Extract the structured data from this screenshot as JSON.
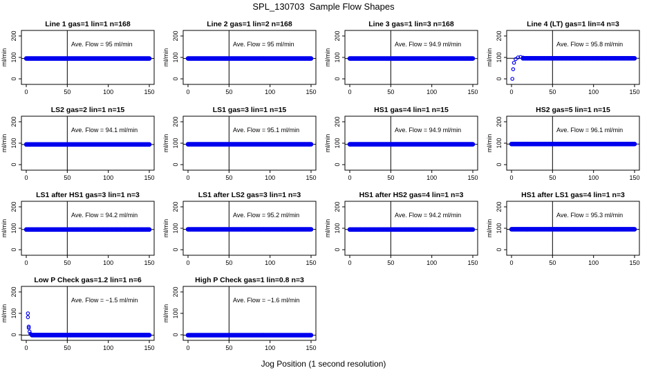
{
  "page_title": "SPL_130703  Sample Flow Shapes",
  "x_axis_label": "Jog Position (1 second resolution)",
  "colors": {
    "points": "#0000ee",
    "axes": "#000000"
  },
  "chart_data": [
    {
      "type": "scatter",
      "title": "Line 1 gas=1 lin=1 n=168",
      "ylabel": "ml/min",
      "xlim": [
        0,
        150
      ],
      "ylim": [
        0,
        200
      ],
      "xticks": [
        "0",
        "50",
        "100",
        "150"
      ],
      "yticks": [
        "0",
        "100",
        "200"
      ],
      "vline_x": 50,
      "hline_y": 95,
      "annotation": "Ave. Flow =  95  ml/min",
      "points": {
        "x_start": 0,
        "x_end": 150,
        "y": 95,
        "transient": []
      }
    },
    {
      "type": "scatter",
      "title": "Line 2 gas=1 lin=2 n=168",
      "ylabel": "ml/min",
      "xlim": [
        0,
        150
      ],
      "ylim": [
        0,
        200
      ],
      "xticks": [
        "0",
        "50",
        "100",
        "150"
      ],
      "yticks": [
        "0",
        "100",
        "200"
      ],
      "vline_x": 50,
      "hline_y": 95,
      "annotation": "Ave. Flow =  95  ml/min",
      "points": {
        "x_start": 0,
        "x_end": 150,
        "y": 95,
        "transient": []
      }
    },
    {
      "type": "scatter",
      "title": "Line 3 gas=1 lin=3 n=168",
      "ylabel": "ml/min",
      "xlim": [
        0,
        150
      ],
      "ylim": [
        0,
        200
      ],
      "xticks": [
        "0",
        "50",
        "100",
        "150"
      ],
      "yticks": [
        "0",
        "100",
        "200"
      ],
      "vline_x": 50,
      "hline_y": 94.9,
      "annotation": "Ave. Flow =  94.9  ml/min",
      "points": {
        "x_start": 0,
        "x_end": 150,
        "y": 94.9,
        "transient": []
      }
    },
    {
      "type": "scatter",
      "title": "Line 4 (LT) gas=1 lin=4 n=3",
      "ylabel": "ml/min",
      "xlim": [
        0,
        150
      ],
      "ylim": [
        0,
        200
      ],
      "xticks": [
        "0",
        "50",
        "100",
        "150"
      ],
      "yticks": [
        "0",
        "100",
        "200"
      ],
      "vline_x": 50,
      "hline_y": 95.8,
      "annotation": "Ave. Flow =  95.8  ml/min",
      "points": {
        "x_start": 14,
        "x_end": 150,
        "y": 95.8,
        "transient": [
          [
            1,
            0
          ],
          [
            2,
            45
          ],
          [
            3,
            75
          ],
          [
            5,
            92
          ],
          [
            8,
            100
          ],
          [
            11,
            102
          ],
          [
            14,
            99
          ]
        ]
      }
    },
    {
      "type": "scatter",
      "title": "LS2 gas=2 lin=1 n=15",
      "ylabel": "ml/min",
      "xlim": [
        0,
        150
      ],
      "ylim": [
        0,
        200
      ],
      "xticks": [
        "0",
        "50",
        "100",
        "150"
      ],
      "yticks": [
        "0",
        "100",
        "200"
      ],
      "vline_x": 50,
      "hline_y": 94.1,
      "annotation": "Ave. Flow =  94.1  ml/min",
      "points": {
        "x_start": 0,
        "x_end": 150,
        "y": 94.1,
        "transient": []
      }
    },
    {
      "type": "scatter",
      "title": "LS1 gas=3 lin=1 n=15",
      "ylabel": "ml/min",
      "xlim": [
        0,
        150
      ],
      "ylim": [
        0,
        200
      ],
      "xticks": [
        "0",
        "50",
        "100",
        "150"
      ],
      "yticks": [
        "0",
        "100",
        "200"
      ],
      "vline_x": 50,
      "hline_y": 95.1,
      "annotation": "Ave. Flow =  95.1  ml/min",
      "points": {
        "x_start": 0,
        "x_end": 150,
        "y": 95.1,
        "transient": []
      }
    },
    {
      "type": "scatter",
      "title": "HS1 gas=4 lin=1 n=15",
      "ylabel": "ml/min",
      "xlim": [
        0,
        150
      ],
      "ylim": [
        0,
        200
      ],
      "xticks": [
        "0",
        "50",
        "100",
        "150"
      ],
      "yticks": [
        "0",
        "100",
        "200"
      ],
      "vline_x": 50,
      "hline_y": 94.9,
      "annotation": "Ave. Flow =  94.9  ml/min",
      "points": {
        "x_start": 0,
        "x_end": 150,
        "y": 94.9,
        "transient": []
      }
    },
    {
      "type": "scatter",
      "title": "HS2 gas=5 lin=1 n=15",
      "ylabel": "ml/min",
      "xlim": [
        0,
        150
      ],
      "ylim": [
        0,
        200
      ],
      "xticks": [
        "0",
        "50",
        "100",
        "150"
      ],
      "yticks": [
        "0",
        "100",
        "200"
      ],
      "vline_x": 50,
      "hline_y": 96.1,
      "annotation": "Ave. Flow =  96.1  ml/min",
      "points": {
        "x_start": 0,
        "x_end": 150,
        "y": 96.1,
        "transient": []
      }
    },
    {
      "type": "scatter",
      "title": "LS1 after HS1 gas=3 lin=1 n=3",
      "ylabel": "ml/min",
      "xlim": [
        0,
        150
      ],
      "ylim": [
        0,
        200
      ],
      "xticks": [
        "0",
        "50",
        "100",
        "150"
      ],
      "yticks": [
        "0",
        "100",
        "200"
      ],
      "vline_x": 50,
      "hline_y": 94.2,
      "annotation": "Ave. Flow =  94.2  ml/min",
      "points": {
        "x_start": 0,
        "x_end": 150,
        "y": 94.2,
        "transient": []
      }
    },
    {
      "type": "scatter",
      "title": "LS1 after LS2 gas=3 lin=1 n=3",
      "ylabel": "ml/min",
      "xlim": [
        0,
        150
      ],
      "ylim": [
        0,
        200
      ],
      "xticks": [
        "0",
        "50",
        "100",
        "150"
      ],
      "yticks": [
        "0",
        "100",
        "200"
      ],
      "vline_x": 50,
      "hline_y": 95.2,
      "annotation": "Ave. Flow =  95.2  ml/min",
      "points": {
        "x_start": 0,
        "x_end": 150,
        "y": 95.2,
        "transient": []
      }
    },
    {
      "type": "scatter",
      "title": "HS1 after HS2 gas=4 lin=1 n=3",
      "ylabel": "ml/min",
      "xlim": [
        0,
        150
      ],
      "ylim": [
        0,
        200
      ],
      "xticks": [
        "0",
        "50",
        "100",
        "150"
      ],
      "yticks": [
        "0",
        "100",
        "200"
      ],
      "vline_x": 50,
      "hline_y": 94.2,
      "annotation": "Ave. Flow =  94.2  ml/min",
      "points": {
        "x_start": 0,
        "x_end": 150,
        "y": 94.2,
        "transient": []
      }
    },
    {
      "type": "scatter",
      "title": "HS1 after LS1 gas=4 lin=1 n=3",
      "ylabel": "ml/min",
      "xlim": [
        0,
        150
      ],
      "ylim": [
        0,
        200
      ],
      "xticks": [
        "0",
        "50",
        "100",
        "150"
      ],
      "yticks": [
        "0",
        "100",
        "200"
      ],
      "vline_x": 50,
      "hline_y": 95.3,
      "annotation": "Ave. Flow =  95.3  ml/min",
      "points": {
        "x_start": 0,
        "x_end": 150,
        "y": 95.3,
        "transient": []
      }
    },
    {
      "type": "scatter",
      "title": "Low P Check gas=1.2 lin=1 n=6",
      "ylabel": "ml/min",
      "xlim": [
        0,
        150
      ],
      "ylim": [
        0,
        200
      ],
      "xticks": [
        "0",
        "50",
        "100",
        "150"
      ],
      "yticks": [
        "0",
        "100",
        "200"
      ],
      "vline_x": 50,
      "hline_y": -1.5,
      "annotation": "Ave. Flow =  −1.5  ml/min",
      "points": {
        "x_start": 7,
        "x_end": 150,
        "y": -1.5,
        "transient": [
          [
            2,
            100
          ],
          [
            2,
            82
          ],
          [
            3,
            38
          ],
          [
            3,
            32
          ],
          [
            4,
            15
          ],
          [
            5,
            5
          ],
          [
            6,
            1
          ]
        ]
      }
    },
    {
      "type": "scatter",
      "title": "High P Check gas=1 lin=0.8 n=3",
      "ylabel": "ml/min",
      "xlim": [
        0,
        150
      ],
      "ylim": [
        0,
        200
      ],
      "xticks": [
        "0",
        "50",
        "100",
        "150"
      ],
      "yticks": [
        "0",
        "100",
        "200"
      ],
      "vline_x": 50,
      "hline_y": -1.6,
      "annotation": "Ave. Flow =  −1.6  ml/min",
      "points": {
        "x_start": 0,
        "x_end": 150,
        "y": -1.6,
        "transient": []
      }
    }
  ]
}
